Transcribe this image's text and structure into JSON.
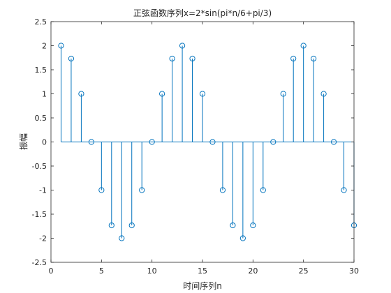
{
  "chart_data": {
    "type": "stem",
    "title": "正弦函数序列x=2*sin(pi*n/6+pi/3)",
    "xlabel": "时间序列n",
    "ylabel": "振幅",
    "xlim": [
      0,
      30
    ],
    "ylim": [
      -2.5,
      2.5
    ],
    "xticks": [
      "0",
      "5",
      "10",
      "15",
      "20",
      "25",
      "30"
    ],
    "yticks": [
      "2.5",
      "2",
      "1.5",
      "1",
      "0.5",
      "0",
      "-0.5",
      "-1",
      "-1.5",
      "-2",
      "-2.5"
    ],
    "grid": false,
    "series": [
      {
        "color": "#0072BD",
        "marker": "circle",
        "x": [
          1,
          2,
          3,
          4,
          5,
          6,
          7,
          8,
          9,
          10,
          11,
          12,
          13,
          14,
          15,
          16,
          17,
          18,
          19,
          20,
          21,
          22,
          23,
          24,
          25,
          26,
          27,
          28,
          29,
          30
        ],
        "y": [
          2,
          1.732,
          1,
          0,
          -1,
          -1.732,
          -2,
          -1.732,
          -1,
          0,
          1,
          1.732,
          2,
          1.732,
          1,
          0,
          -1,
          -1.732,
          -2,
          -1.732,
          -1,
          0,
          1,
          1.732,
          2,
          1.732,
          1,
          0,
          -1,
          -1.732
        ]
      }
    ]
  }
}
